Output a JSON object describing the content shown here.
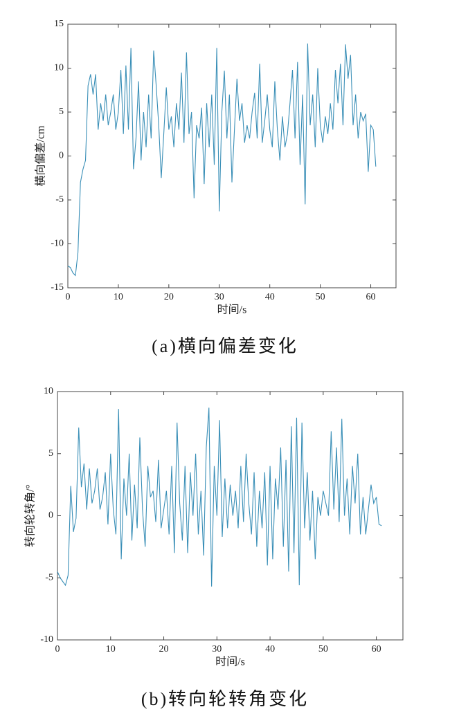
{
  "chart_data": [
    {
      "type": "line",
      "caption": "(a)横向偏差变化",
      "xlabel": "时间/s",
      "ylabel": "横向偏差/cm",
      "color": "#3a8fb7",
      "xlim": [
        0,
        65
      ],
      "ylim": [
        -15,
        15
      ],
      "xticks": [
        0,
        10,
        20,
        30,
        40,
        50,
        60
      ],
      "yticks": [
        -15,
        -10,
        -5,
        0,
        5,
        10,
        15
      ],
      "x": [
        0,
        0.5,
        1,
        1.5,
        2,
        2.5,
        3,
        3.5,
        4,
        4.5,
        5,
        5.5,
        6,
        6.5,
        7,
        7.5,
        8,
        8.5,
        9,
        9.5,
        10,
        10.5,
        11,
        11.5,
        12,
        12.5,
        13,
        13.5,
        14,
        14.5,
        15,
        15.5,
        16,
        16.5,
        17,
        17.5,
        18,
        18.5,
        19,
        19.5,
        20,
        20.5,
        21,
        21.5,
        22,
        22.5,
        23,
        23.5,
        24,
        24.5,
        25,
        25.5,
        26,
        26.5,
        27,
        27.5,
        28,
        28.5,
        29,
        29.5,
        30,
        30.5,
        31,
        31.5,
        32,
        32.5,
        33,
        33.5,
        34,
        34.5,
        35,
        35.5,
        36,
        36.5,
        37,
        37.5,
        38,
        38.5,
        39,
        39.5,
        40,
        40.5,
        41,
        41.5,
        42,
        42.5,
        43,
        43.5,
        44,
        44.5,
        45,
        45.5,
        46,
        46.5,
        47,
        47.5,
        48,
        48.5,
        49,
        49.5,
        50,
        50.5,
        51,
        51.5,
        52,
        52.5,
        53,
        53.5,
        54,
        54.5,
        55,
        55.5,
        56,
        56.5,
        57,
        57.5,
        58,
        58.5,
        59,
        59.5,
        60,
        60.5,
        61
      ],
      "values": [
        -12.5,
        -12.7,
        -13.3,
        -13.6,
        -11,
        -3,
        -1.5,
        -0.5,
        8,
        9.3,
        7,
        9.3,
        3,
        6,
        4,
        7,
        3.5,
        5,
        7,
        3,
        5,
        9.8,
        2.5,
        10.3,
        3,
        12.3,
        -1.5,
        2,
        8.5,
        -0.5,
        5,
        1,
        7,
        2,
        12,
        8,
        3.5,
        -2.5,
        2.5,
        7.8,
        3,
        4.5,
        1,
        6,
        3,
        9.5,
        1.5,
        11.8,
        2.5,
        5,
        -4.8,
        3.5,
        2,
        5.5,
        -3.2,
        6,
        1,
        7,
        -1,
        12.3,
        -6.3,
        5,
        9.7,
        2,
        7,
        -3,
        3,
        8.8,
        4,
        6,
        1.5,
        3.5,
        2,
        5,
        7.2,
        2,
        10.5,
        1.5,
        4,
        7,
        3,
        1,
        8.5,
        3,
        -0.5,
        4.5,
        1,
        2.5,
        6,
        9.8,
        2,
        10.7,
        -1,
        7,
        -5.5,
        12.8,
        3.5,
        7,
        1,
        10,
        3.5,
        1.5,
        4.5,
        2.5,
        6,
        3,
        9.8,
        6,
        10.5,
        3.5,
        12.7,
        8.8,
        11.5,
        3.5,
        7,
        2,
        5,
        4,
        4.8,
        -1.8,
        3.5,
        3,
        -1.2
      ]
    },
    {
      "type": "line",
      "caption": "(b)转向轮转角变化",
      "xlabel": "时间/s",
      "ylabel": "转向轮转角/°",
      "color": "#3a8fb7",
      "xlim": [
        0,
        65
      ],
      "ylim": [
        -10,
        10
      ],
      "xticks": [
        0,
        10,
        20,
        30,
        40,
        50,
        60
      ],
      "yticks": [
        -10,
        -5,
        0,
        5,
        10
      ],
      "x": [
        0,
        0.5,
        1,
        1.5,
        2,
        2.5,
        3,
        3.5,
        4,
        4.5,
        5,
        5.5,
        6,
        6.5,
        7,
        7.5,
        8,
        8.5,
        9,
        9.5,
        10,
        10.5,
        11,
        11.5,
        12,
        12.5,
        13,
        13.5,
        14,
        14.5,
        15,
        15.5,
        16,
        16.5,
        17,
        17.5,
        18,
        18.5,
        19,
        19.5,
        20,
        20.5,
        21,
        21.5,
        22,
        22.5,
        23,
        23.5,
        24,
        24.5,
        25,
        25.5,
        26,
        26.5,
        27,
        27.5,
        28,
        28.5,
        29,
        29.5,
        30,
        30.5,
        31,
        31.5,
        32,
        32.5,
        33,
        33.5,
        34,
        34.5,
        35,
        35.5,
        36,
        36.5,
        37,
        37.5,
        38,
        38.5,
        39,
        39.5,
        40,
        40.5,
        41,
        41.5,
        42,
        42.5,
        43,
        43.5,
        44,
        44.5,
        45,
        45.5,
        46,
        46.5,
        47,
        47.5,
        48,
        48.5,
        49,
        49.5,
        50,
        50.5,
        51,
        51.5,
        52,
        52.5,
        53,
        53.5,
        54,
        54.5,
        55,
        55.5,
        56,
        56.5,
        57,
        57.5,
        58,
        58.5,
        59,
        59.5,
        60,
        60.5,
        61
      ],
      "values": [
        -4.5,
        -5,
        -5.3,
        -5.6,
        -4.8,
        2.4,
        -1.3,
        -0.2,
        7.1,
        2.3,
        4.2,
        0.5,
        3.8,
        1,
        2,
        3.8,
        0.5,
        1.5,
        3.5,
        -0.7,
        5,
        0.5,
        -1.5,
        8.6,
        -3.5,
        3,
        0,
        5,
        -2,
        2.5,
        -1,
        6.3,
        0.5,
        -2.5,
        4,
        1.5,
        2,
        -0.5,
        4.5,
        -1,
        0.5,
        2,
        -1.5,
        4,
        -3,
        7.5,
        1,
        -2,
        4,
        -3,
        3.5,
        0,
        5,
        -1.5,
        2,
        -3.2,
        5.5,
        8.7,
        -5.7,
        4,
        0,
        7.7,
        -1.7,
        3,
        -1,
        2.5,
        0,
        2,
        -1,
        4,
        -0.5,
        5,
        1,
        -1.5,
        3.5,
        -2.5,
        2,
        -1,
        3.5,
        -4,
        4,
        -3.5,
        3,
        0.5,
        5.5,
        -2.5,
        4.5,
        -4.5,
        7.2,
        -3,
        7.9,
        -5.6,
        7.5,
        -1,
        3.5,
        -2,
        2,
        -3.5,
        1.5,
        0,
        2,
        1,
        0,
        6.8,
        0.5,
        5.5,
        -0.5,
        7.8,
        0,
        3,
        -1.5,
        4,
        1,
        5,
        -1.5,
        1.5,
        -1.5,
        0.5,
        2.5,
        1,
        1.5,
        -0.7,
        -0.8
      ]
    }
  ]
}
